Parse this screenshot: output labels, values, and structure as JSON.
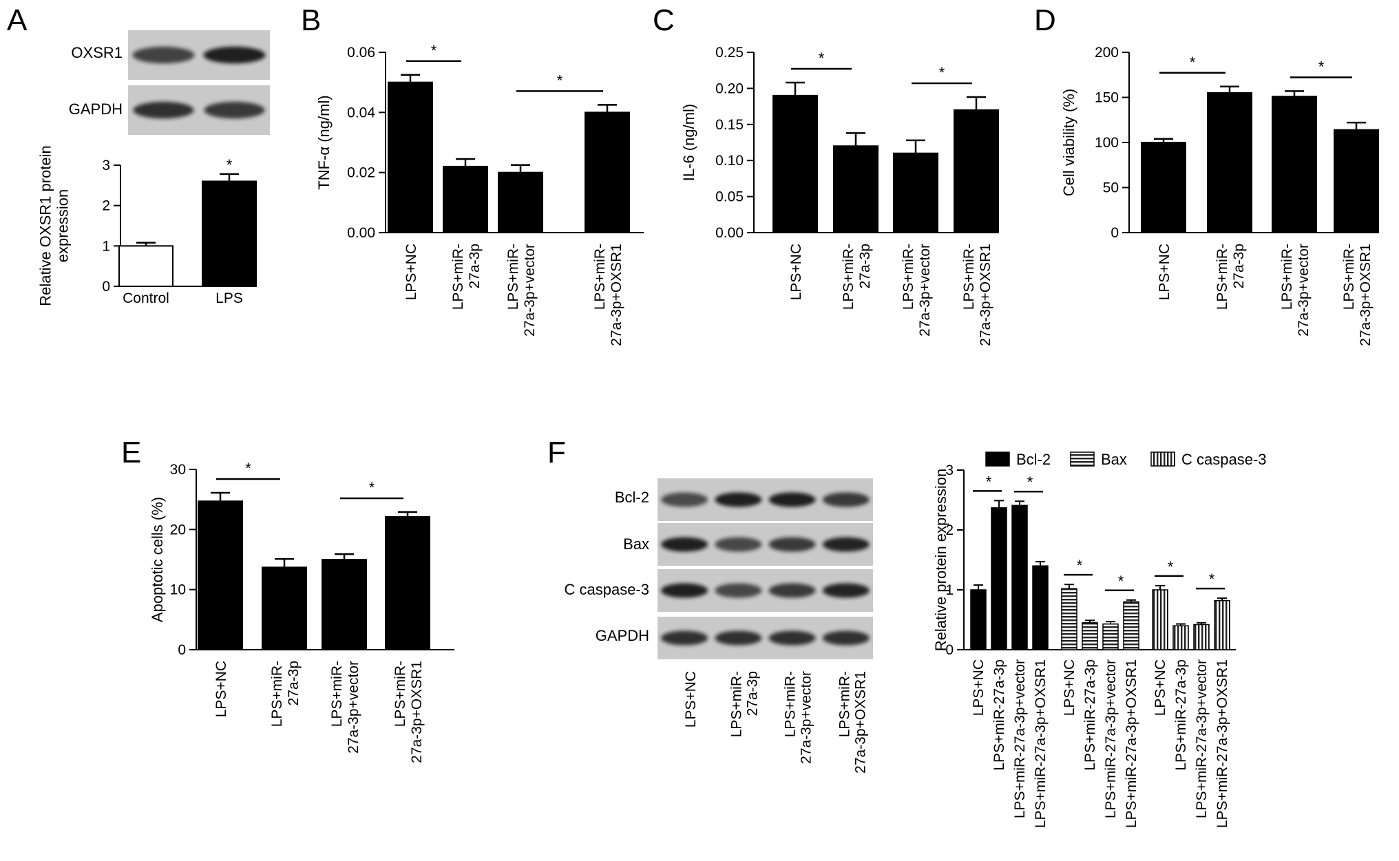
{
  "figure": {
    "panel_letters": [
      "A",
      "B",
      "C",
      "D",
      "E",
      "F"
    ],
    "significance_marker": "*",
    "blot_labels_a": [
      "OXSR1",
      "GAPDH"
    ],
    "blot_labels_f": [
      "Bcl-2",
      "Bax",
      "C caspase-3",
      "GAPDH"
    ],
    "blot_lane_labels_f": [
      [
        "LPS+NC"
      ],
      [
        "LPS+miR-",
        "27a-3p"
      ],
      [
        "LPS+miR-",
        "27a-3p+vector"
      ],
      [
        "LPS+miR-",
        "27a-3p+OXSR1"
      ]
    ],
    "blot_band_intensity_a": [
      [
        0.75,
        0.95
      ],
      [
        0.85,
        0.8
      ]
    ],
    "blot_band_intensity_f": [
      [
        0.7,
        0.95,
        0.95,
        0.8
      ],
      [
        0.95,
        0.72,
        0.8,
        0.92
      ],
      [
        0.95,
        0.72,
        0.8,
        0.92
      ],
      [
        0.85,
        0.85,
        0.85,
        0.85
      ]
    ]
  },
  "chart_data": [
    {
      "panel": "A",
      "type": "bar",
      "categories": [
        [
          "Control"
        ],
        [
          "LPS"
        ]
      ],
      "values": [
        1.0,
        2.6
      ],
      "errors": [
        0.08,
        0.18
      ],
      "bar_colors": [
        "#ffffff",
        "#000000"
      ],
      "ylabel": [
        "Relative OXSR1 protein",
        "expression"
      ],
      "ylim": [
        0,
        3
      ],
      "yticks": [
        "0",
        "1",
        "2",
        "3"
      ],
      "significance": [
        {
          "over": 1
        }
      ],
      "category_rotation": "none"
    },
    {
      "panel": "B",
      "type": "bar",
      "categories": [
        [
          "LPS+NC"
        ],
        [
          "LPS+miR-",
          "27a-3p"
        ],
        [
          "LPS+miR-",
          "27a-3p+vector"
        ],
        [
          "LPS+miR-",
          "27a-3p+OXSR1"
        ]
      ],
      "values": [
        0.05,
        0.022,
        0.02,
        0.04
      ],
      "errors": [
        0.0025,
        0.0025,
        0.0025,
        0.0025
      ],
      "ylabel": [
        "TNF-α (ng/ml)"
      ],
      "ylim": [
        0,
        0.06
      ],
      "yticks": [
        "0.00",
        "0.02",
        "0.04",
        "0.06"
      ],
      "significance": [
        {
          "from": 0,
          "to": 1
        },
        {
          "from": 2,
          "to": 3
        }
      ],
      "category_rotation": "vertical"
    },
    {
      "panel": "C",
      "type": "bar",
      "categories": [
        [
          "LPS+NC"
        ],
        [
          "LPS+miR-",
          "27a-3p"
        ],
        [
          "LPS+miR-",
          "27a-3p+vector"
        ],
        [
          "LPS+miR-",
          "27a-3p+OXSR1"
        ]
      ],
      "values": [
        0.19,
        0.12,
        0.11,
        0.17
      ],
      "errors": [
        0.018,
        0.018,
        0.018,
        0.018
      ],
      "ylabel": [
        "IL-6 (ng/ml)"
      ],
      "ylim": [
        0,
        0.25
      ],
      "yticks": [
        "0.00",
        "0.05",
        "0.10",
        "0.15",
        "0.20",
        "0.25"
      ],
      "significance": [
        {
          "from": 0,
          "to": 1
        },
        {
          "from": 2,
          "to": 3
        }
      ],
      "category_rotation": "vertical"
    },
    {
      "panel": "D",
      "type": "bar",
      "categories": [
        [
          "LPS+NC"
        ],
        [
          "LPS+miR-",
          "27a-3p"
        ],
        [
          "LPS+miR-",
          "27a-3p+vector"
        ],
        [
          "LPS+miR-",
          "27a-3p+OXSR1"
        ]
      ],
      "values": [
        100,
        155,
        151,
        114
      ],
      "errors": [
        4,
        7,
        6,
        8
      ],
      "ylabel": [
        "Cell viability (%)"
      ],
      "ylim": [
        0,
        200
      ],
      "yticks": [
        "0",
        "50",
        "100",
        "150",
        "200"
      ],
      "significance": [
        {
          "from": 0,
          "to": 1
        },
        {
          "from": 2,
          "to": 3
        }
      ],
      "category_rotation": "vertical"
    },
    {
      "panel": "E",
      "type": "bar",
      "categories": [
        [
          "LPS+NC"
        ],
        [
          "LPS+miR-",
          "27a-3p"
        ],
        [
          "LPS+miR-",
          "27a-3p+vector"
        ],
        [
          "LPS+miR-",
          "27a-3p+OXSR1"
        ]
      ],
      "values": [
        24.7,
        13.7,
        15.0,
        22.1
      ],
      "errors": [
        1.4,
        1.4,
        0.9,
        0.8
      ],
      "ylabel": [
        "Apoptotic cells (%)"
      ],
      "ylim": [
        0,
        30
      ],
      "yticks": [
        "0",
        "10",
        "20",
        "30"
      ],
      "significance": [
        {
          "from": 0,
          "to": 1
        },
        {
          "from": 2,
          "to": 3
        }
      ],
      "category_rotation": "vertical"
    },
    {
      "panel": "F",
      "type": "bar",
      "groups": [
        "Bcl-2",
        "Bax",
        "C caspase-3"
      ],
      "legend": [
        "Bcl-2",
        "Bax",
        "C caspase-3"
      ],
      "legend_placement": "top",
      "categories": [
        "LPS+NC",
        "LPS+miR-27a-3p",
        "LPS+miR-27a-3p+vector",
        "LPS+miR-27a-3p+OXSR1"
      ],
      "series": [
        {
          "name": "Bcl-2",
          "values": [
            1.0,
            2.37,
            2.41,
            1.4
          ],
          "errors": [
            0.08,
            0.12,
            0.07,
            0.07
          ]
        },
        {
          "name": "Bax",
          "values": [
            1.02,
            0.45,
            0.43,
            0.8
          ],
          "errors": [
            0.07,
            0.04,
            0.04,
            0.03
          ]
        },
        {
          "name": "C caspase-3",
          "values": [
            1.0,
            0.4,
            0.42,
            0.82
          ],
          "errors": [
            0.07,
            0.03,
            0.03,
            0.04
          ]
        }
      ],
      "ylabel": [
        "Relative protein expression"
      ],
      "ylim": [
        0,
        3
      ],
      "yticks": [
        "0",
        "1",
        "2",
        "3"
      ],
      "significance_pairs": [
        [
          0,
          1
        ],
        [
          2,
          3
        ]
      ],
      "category_rotation": "vertical"
    }
  ]
}
